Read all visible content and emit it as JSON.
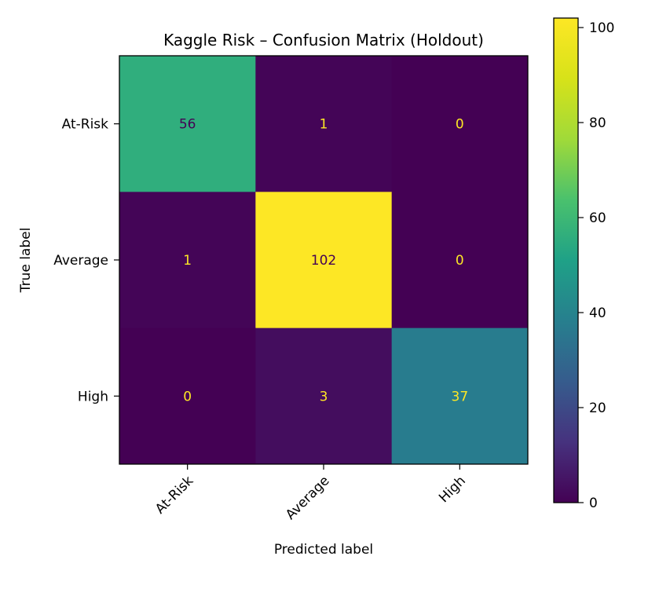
{
  "chart_data": {
    "type": "heatmap",
    "title": "Kaggle Risk – Confusion Matrix (Holdout)",
    "xlabel": "Predicted label",
    "ylabel": "True label",
    "x_categories": [
      "At-Risk",
      "Average",
      "High"
    ],
    "y_categories": [
      "At-Risk",
      "Average",
      "High"
    ],
    "values": [
      [
        56,
        1,
        0
      ],
      [
        1,
        102,
        0
      ],
      [
        0,
        3,
        37
      ]
    ],
    "colormap": "viridis",
    "color_range": [
      0,
      102
    ],
    "colorbar_ticks": [
      0,
      20,
      40,
      60,
      80,
      100
    ],
    "cell_text_colors": {
      "dark_background": "#fde725",
      "light_background": "#440154"
    },
    "grid": false
  }
}
